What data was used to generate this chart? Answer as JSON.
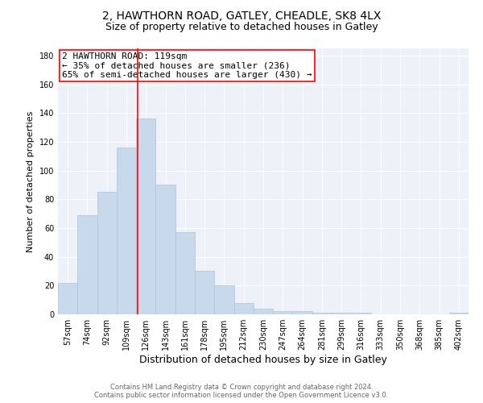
{
  "title": "2, HAWTHORN ROAD, GATLEY, CHEADLE, SK8 4LX",
  "subtitle": "Size of property relative to detached houses in Gatley",
  "xlabel": "Distribution of detached houses by size in Gatley",
  "ylabel": "Number of detached properties",
  "footer_line1": "Contains HM Land Registry data © Crown copyright and database right 2024.",
  "footer_line2": "Contains public sector information licensed under the Open Government Licence v3.0.",
  "bar_labels": [
    "57sqm",
    "74sqm",
    "92sqm",
    "109sqm",
    "126sqm",
    "143sqm",
    "161sqm",
    "178sqm",
    "195sqm",
    "212sqm",
    "230sqm",
    "247sqm",
    "264sqm",
    "281sqm",
    "299sqm",
    "316sqm",
    "333sqm",
    "350sqm",
    "368sqm",
    "385sqm",
    "402sqm"
  ],
  "bar_values": [
    22,
    69,
    85,
    116,
    136,
    90,
    57,
    30,
    20,
    8,
    4,
    2,
    2,
    1,
    1,
    1,
    0,
    0,
    0,
    0,
    1
  ],
  "bar_color": "#c9d9ec",
  "bar_edge_color": "#a8c4de",
  "property_label_line1": "2 HAWTHORN ROAD: 119sqm",
  "annotation_line2": "← 35% of detached houses are smaller (236)",
  "annotation_line3": "65% of semi-detached houses are larger (430) →",
  "vline_color": "red",
  "vline_x": 3.59,
  "ylim": [
    0,
    185
  ],
  "yticks": [
    0,
    20,
    40,
    60,
    80,
    100,
    120,
    140,
    160,
    180
  ],
  "background_color": "#ffffff",
  "grid_color": "#d8e4f0",
  "title_fontsize": 10,
  "subtitle_fontsize": 9,
  "xlabel_fontsize": 9,
  "ylabel_fontsize": 8,
  "tick_fontsize": 7,
  "annotation_fontsize": 8
}
